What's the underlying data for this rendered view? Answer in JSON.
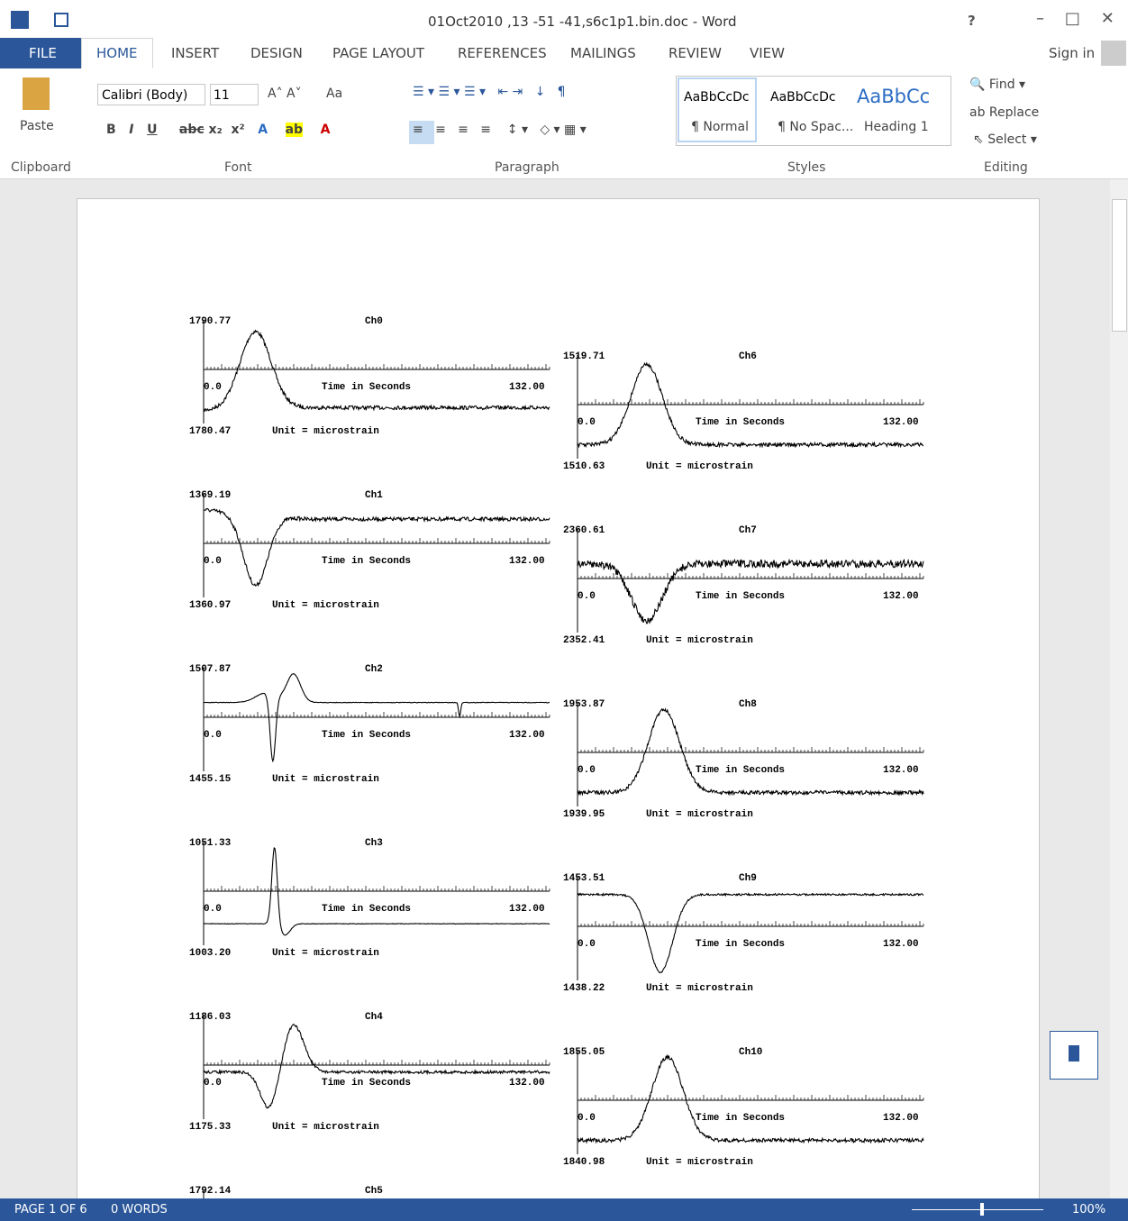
{
  "window": {
    "title": "01Oct2010 ,13 -51 -41,s6c1p1.bin.doc - Word",
    "help": "?",
    "sign_in": "Sign in"
  },
  "tabs": [
    "FILE",
    "HOME",
    "INSERT",
    "DESIGN",
    "PAGE LAYOUT",
    "REFERENCES",
    "MAILINGS",
    "REVIEW",
    "VIEW"
  ],
  "ribbon": {
    "clipboard": {
      "paste": "Paste",
      "label": "Clipboard"
    },
    "font": {
      "name": "Calibri (Body)",
      "size": "11",
      "change_case": "Aa",
      "label": "Font"
    },
    "paragraph": {
      "label": "Paragraph"
    },
    "styles": {
      "items": [
        {
          "preview": "AaBbCcDc",
          "name": "¶ Normal"
        },
        {
          "preview": "AaBbCcDc",
          "name": "¶ No Spac..."
        },
        {
          "preview": "AaBbCc",
          "name": "Heading 1"
        }
      ],
      "label": "Styles"
    },
    "editing": {
      "find": "Find",
      "replace": "Replace",
      "select": "Select",
      "label": "Editing"
    }
  },
  "document": {
    "x_axis_label": "Time in Seconds",
    "unit_label": "Unit = microstrain",
    "x_start": "0.0",
    "x_end": "132.00",
    "charts": [
      {
        "name": "Ch0",
        "max": "1790.77",
        "min": "1780.47"
      },
      {
        "name": "Ch1",
        "max": "1369.19",
        "min": "1360.97"
      },
      {
        "name": "Ch2",
        "max": "1507.87",
        "min": "1455.15"
      },
      {
        "name": "Ch3",
        "max": "1051.33",
        "min": "1003.20"
      },
      {
        "name": "Ch4",
        "max": "1186.03",
        "min": "1175.33"
      },
      {
        "name": "Ch5",
        "max": "1792.14"
      },
      {
        "name": "Ch6",
        "max": "1519.71",
        "min": "1510.63"
      },
      {
        "name": "Ch7",
        "max": "2360.61",
        "min": "2352.41"
      },
      {
        "name": "Ch8",
        "max": "1953.87",
        "min": "1939.95"
      },
      {
        "name": "Ch9",
        "max": "1453.51",
        "min": "1438.22"
      },
      {
        "name": "Ch10",
        "max": "1855.05",
        "min": "1840.98"
      }
    ]
  },
  "status": {
    "page": "PAGE 1 OF 6",
    "words": "0 WORDS",
    "zoom": "100%"
  }
}
